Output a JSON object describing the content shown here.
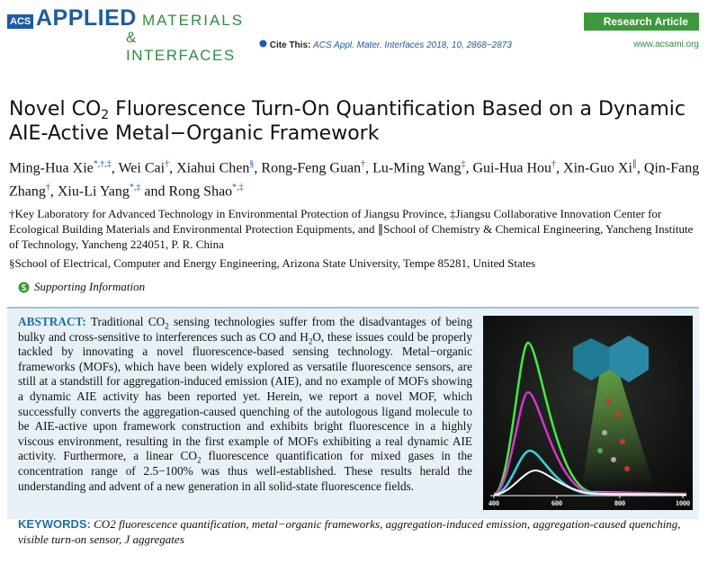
{
  "header": {
    "logo_acs": "ACS",
    "logo_applied": "APPLIED",
    "logo_materials": "MATERIALS",
    "logo_interfaces": "& INTERFACES",
    "article_type": "Research Article",
    "cite_label": "Cite This:",
    "cite_text": "ACS Appl. Mater. Interfaces 2018, 10, 2868−2873",
    "website": "www.acsami.org"
  },
  "title": [
    "Novel CO",
    "2",
    " Fluorescence Turn-On Quantification Based on a Dynamic AIE-Active Metal−Organic Framework"
  ],
  "authors": [
    {
      "name": "Ming-Hua Xie",
      "sup": "*,†,‡",
      "sep": ", "
    },
    {
      "name": "Wei Cai",
      "sup": "†",
      "sep": ", "
    },
    {
      "name": "Xiahui Chen",
      "sup": "§",
      "sep": ", "
    },
    {
      "name": "Rong-Feng Guan",
      "sup": "†",
      "sep": ", "
    },
    {
      "name": "Lu-Ming Wang",
      "sup": "‡",
      "sep": ", "
    },
    {
      "name": "Gui-Hua Hou",
      "sup": "†",
      "sep": ", "
    },
    {
      "name": "Xin-Guo Xi",
      "sup": "∥",
      "sep": ", "
    },
    {
      "name": "Qin-Fang Zhang",
      "sup": "†",
      "sep": ", "
    },
    {
      "name": "Xiu-Li Yang",
      "sup": "*,‡",
      "sep": " and "
    },
    {
      "name": "Rong Shao",
      "sup": "*,‡"
    }
  ],
  "affiliations": [
    "†Key Laboratory for Advanced Technology in Environmental Protection of Jiangsu Province, ‡Jiangsu Collaborative Innovation Center for Ecological Building Materials and Environmental Protection Equipments, and ∥School of Chemistry & Chemical Engineering, Yancheng Institute of Technology, Yancheng 224051, P. R. China",
    "§School of Electrical, Computer and Energy Engineering, Arizona State University, Tempe 85281, United States"
  ],
  "supporting_information": "Supporting Information",
  "abstract": {
    "label": "ABSTRACT:",
    "parts": [
      "Traditional CO",
      "2",
      " sensing technologies suffer from the disadvantages of being bulky and cross-sensitive to interferences such as CO and H",
      "2",
      "O, these issues could be properly tackled by innovating a novel fluorescence-based sensing technology. Metal−organic frameworks (MOFs), which have been widely explored as versatile fluorescence sensors, are still at a standstill for aggregation-induced emission (AIE), and no example of MOFs showing a dynamic AIE activity has been reported yet. Herein, we report a novel MOF, which successfully converts the aggregation-caused quenching of the autologous ligand molecule to be AIE-active upon framework construction and exhibits bright fluorescence in a highly viscous environment, resulting in the first example of MOFs exhibiting a real dynamic AIE activity. Furthermore, a linear CO",
      "2",
      " fluorescence quantification for mixed gases in the concentration range of 2.5−100% was thus well-established. These results herald the understanding and advent of a new generation in all solid-state fluorescence fields."
    ]
  },
  "figure": {
    "xlim": [
      400,
      1000
    ],
    "xticks": [
      400,
      600,
      800,
      1000
    ]
  },
  "keywords": {
    "label": "KEYWORDS:",
    "text": "CO2 fluorescence quantification, metal−organic frameworks, aggregation-induced emission, aggregation-caused quenching, visible turn-on sensor, J aggregates"
  }
}
